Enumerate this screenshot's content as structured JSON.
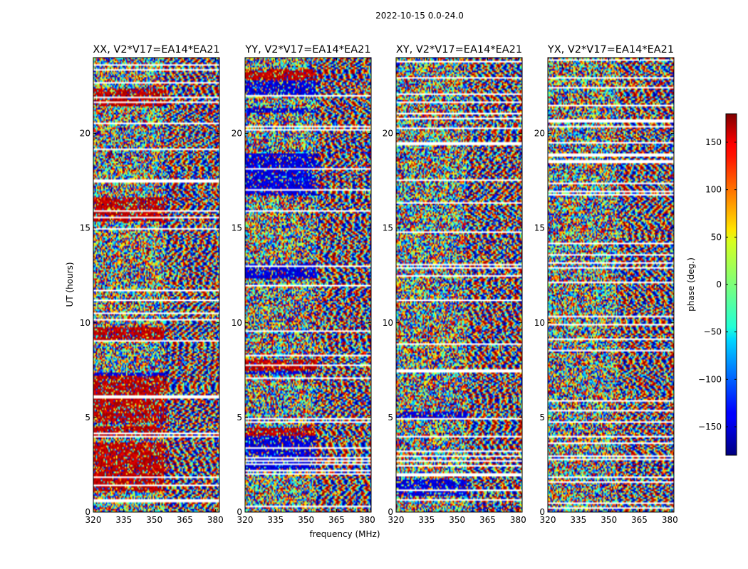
{
  "figure": {
    "suptitle": "2022-10-15 0.0-24.0"
  },
  "chart_data": {
    "type": "heatmap",
    "suptitle": "2022-10-15 0.0-24.0",
    "xlabel": "frequency (MHz)",
    "ylabel": "UT (hours)",
    "xlim": [
      320,
      382
    ],
    "ylim": [
      0,
      24
    ],
    "x_ticks": [
      320,
      335,
      350,
      365,
      380
    ],
    "y_ticks": [
      0,
      5,
      10,
      15,
      20
    ],
    "colormap": "jet",
    "panels": [
      {
        "title": "XX, V2*V17=EA14*EA21"
      },
      {
        "title": "YY, V2*V17=EA14*EA21"
      },
      {
        "title": "XY, V2*V17=EA14*EA21"
      },
      {
        "title": "YX, V2*V17=EA14*EA21"
      }
    ],
    "colorbar": {
      "label": "phase (deg.)",
      "range": [
        -180,
        180
      ],
      "ticks": [
        -150,
        -100,
        -50,
        0,
        50,
        100,
        150
      ]
    }
  }
}
